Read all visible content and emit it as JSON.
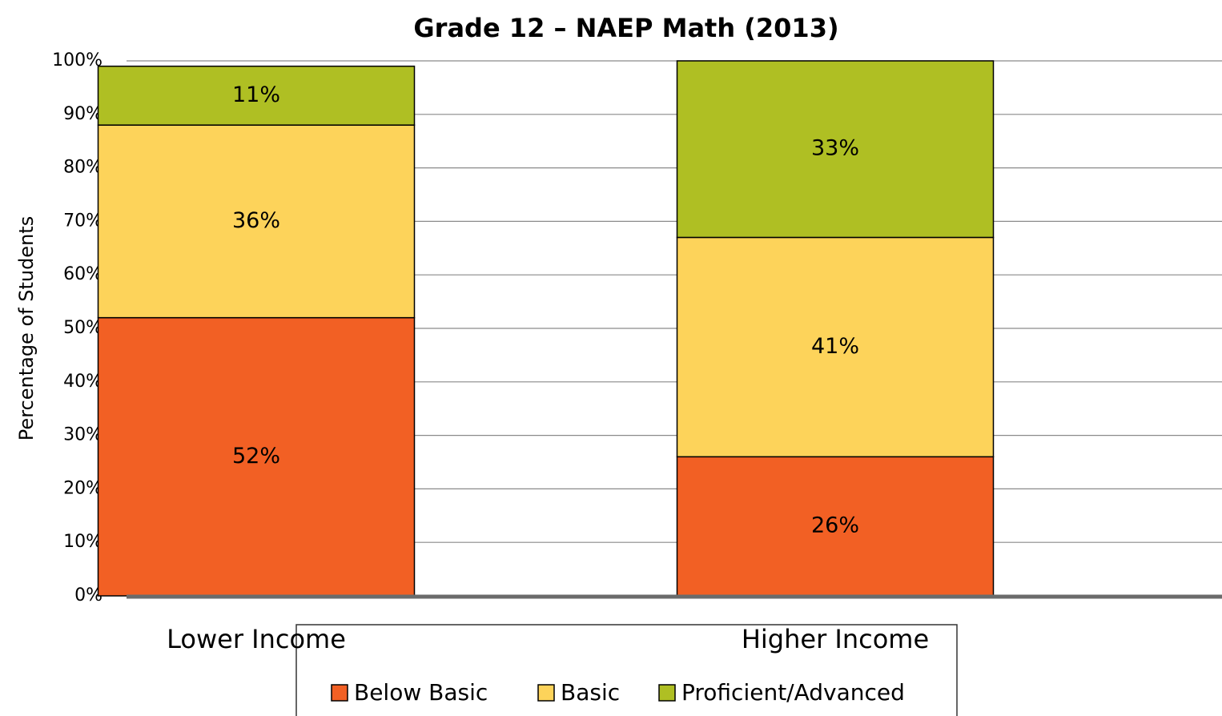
{
  "chart_data": {
    "type": "stacked_bar",
    "title": "Grade 12 – NAEP Math (2013)",
    "y_label": "Percentage of Students",
    "categories": [
      "Lower Income",
      "Higher Income"
    ],
    "series": [
      {
        "name": "Below Basic",
        "color": "#f26024",
        "values": [
          52,
          26
        ],
        "value_labels": [
          "52%",
          "26%"
        ]
      },
      {
        "name": "Basic",
        "color": "#fdd35a",
        "values": [
          36,
          41
        ],
        "value_labels": [
          "36%",
          "41%"
        ]
      },
      {
        "name": "Proficient/Advanced",
        "color": "#afbf23",
        "values": [
          11,
          33
        ],
        "value_labels": [
          "11%",
          "33%"
        ]
      }
    ],
    "ylim": [
      0,
      100
    ],
    "yticks": [
      {
        "value": 0,
        "label": "0%"
      },
      {
        "value": 10,
        "label": "10%"
      },
      {
        "value": 20,
        "label": "20%"
      },
      {
        "value": 30,
        "label": "30%"
      },
      {
        "value": 40,
        "label": "40%"
      },
      {
        "value": 50,
        "label": "50%"
      },
      {
        "value": 60,
        "label": "60%"
      },
      {
        "value": 70,
        "label": "70%"
      },
      {
        "value": 80,
        "label": "80%"
      },
      {
        "value": 90,
        "label": "90%"
      },
      {
        "value": 100,
        "label": "100%"
      }
    ],
    "grid": true,
    "legend": "bottom"
  }
}
